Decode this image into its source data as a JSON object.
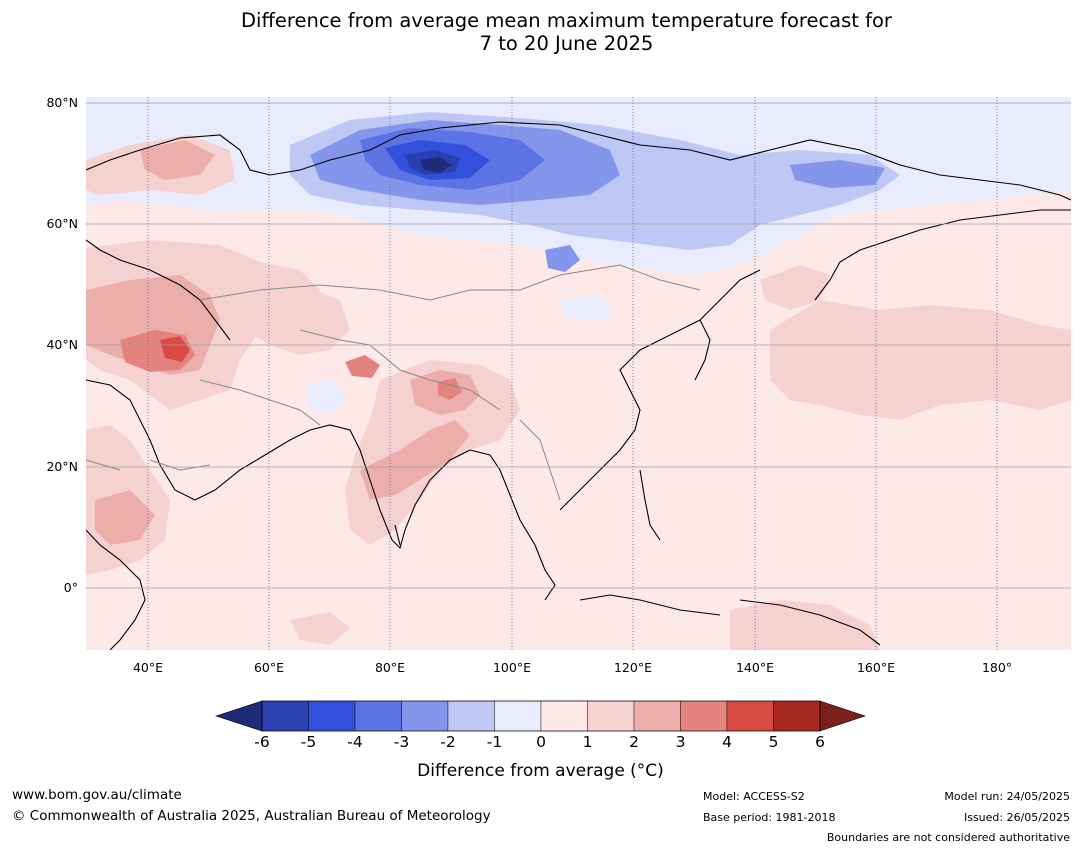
{
  "title": {
    "line1": "Difference from average mean maximum temperature forecast for",
    "line2": "7 to 20 June 2025"
  },
  "map": {
    "lat_labels": [
      "80°N",
      "60°N",
      "40°N",
      "20°N",
      "0°"
    ],
    "lon_labels": [
      "40°E",
      "60°E",
      "80°E",
      "100°E",
      "120°E",
      "140°E",
      "160°E",
      "180°"
    ]
  },
  "colorbar": {
    "ticks": [
      "-6",
      "-5",
      "-4",
      "-3",
      "-2",
      "-1",
      "0",
      "1",
      "2",
      "3",
      "4",
      "5",
      "6"
    ],
    "colors": [
      "#1f2a78",
      "#2a3fb0",
      "#3350dd",
      "#5b73e4",
      "#8496ec",
      "#bfc8f5",
      "#e8ecfc",
      "#fce9e8",
      "#f5d2cf",
      "#ecaeaa",
      "#e4837e",
      "#d94a42",
      "#a82a22",
      "#7a1f1a"
    ],
    "label": "Difference from average (°C)"
  },
  "footer": {
    "website": "www.bom.gov.au/climate",
    "copyright": "© Commonwealth of Australia 2025, Australian Bureau of Meteorology",
    "model": "Model: ACCESS-S2",
    "base_period": "Base period: 1981-2018",
    "model_run": "Model run: 24/05/2025",
    "issued": "Issued: 26/05/2025",
    "disclaimer": "Boundaries are not considered authoritative"
  }
}
